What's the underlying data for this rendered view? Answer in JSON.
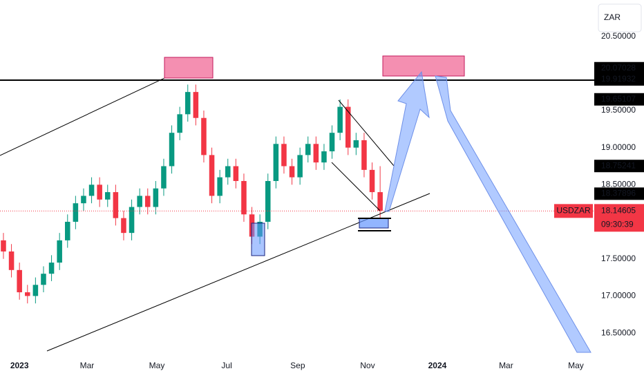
{
  "chart_data": {
    "type": "candlestick",
    "currency": "ZAR",
    "symbol": "USDZAR",
    "countdown": "09:30:39",
    "x": [
      -14,
      -7,
      0,
      7,
      14,
      21,
      28,
      35,
      42,
      49,
      56,
      63,
      70,
      77,
      84,
      91,
      98,
      105,
      112,
      119,
      126,
      133,
      140,
      147,
      154,
      161,
      168,
      175,
      182,
      189,
      196,
      203,
      210,
      217,
      224,
      231,
      238,
      245,
      252,
      259,
      266,
      273,
      280,
      287,
      294,
      301,
      308,
      315
    ],
    "open": [
      17.75,
      17.6,
      17.35,
      17.05,
      17.0,
      17.15,
      17.3,
      17.45,
      17.75,
      18.0,
      18.25,
      18.35,
      18.5,
      18.3,
      18.4,
      18.05,
      17.85,
      18.2,
      18.35,
      18.2,
      18.45,
      18.75,
      19.2,
      19.45,
      19.75,
      19.4,
      18.9,
      18.35,
      18.6,
      18.75,
      18.55,
      18.1,
      17.8,
      18.0,
      18.55,
      19.05,
      18.75,
      18.6,
      18.9,
      19.05,
      18.8,
      18.95,
      19.2,
      19.55,
      19.0,
      19.1,
      18.7,
      18.4
    ],
    "close": [
      17.6,
      17.35,
      17.05,
      17.0,
      17.15,
      17.3,
      17.45,
      17.75,
      18.0,
      18.25,
      18.35,
      18.5,
      18.3,
      18.4,
      18.05,
      17.85,
      18.2,
      18.35,
      18.2,
      18.45,
      18.75,
      19.2,
      19.45,
      19.75,
      19.4,
      18.9,
      18.35,
      18.6,
      18.75,
      18.55,
      18.1,
      17.8,
      18.0,
      18.55,
      19.05,
      18.75,
      18.6,
      18.9,
      19.05,
      18.8,
      18.95,
      19.2,
      19.55,
      19.0,
      19.1,
      18.7,
      18.4,
      18.15
    ],
    "high": [
      17.85,
      17.7,
      17.45,
      17.15,
      17.25,
      17.4,
      17.55,
      17.85,
      18.1,
      18.35,
      18.45,
      18.6,
      18.6,
      18.5,
      18.5,
      18.15,
      18.3,
      18.45,
      18.45,
      18.55,
      18.85,
      19.3,
      19.55,
      19.85,
      19.85,
      19.5,
      19.0,
      18.7,
      18.85,
      18.85,
      18.65,
      18.2,
      18.1,
      18.65,
      19.15,
      19.15,
      18.85,
      19.0,
      19.15,
      19.15,
      19.05,
      19.3,
      19.65,
      19.65,
      19.2,
      19.2,
      18.8,
      18.75
    ],
    "low": [
      17.5,
      17.25,
      16.95,
      16.9,
      16.9,
      17.05,
      17.2,
      17.35,
      17.65,
      17.9,
      18.15,
      18.25,
      18.2,
      18.2,
      17.95,
      17.75,
      17.75,
      18.1,
      18.1,
      18.1,
      18.35,
      18.65,
      19.1,
      19.35,
      19.3,
      18.8,
      18.25,
      18.25,
      18.5,
      18.45,
      18.0,
      17.7,
      17.7,
      17.9,
      18.45,
      18.65,
      18.5,
      18.5,
      18.8,
      18.7,
      18.7,
      18.85,
      19.1,
      18.9,
      18.9,
      18.6,
      18.3,
      18.05
    ],
    "xlim": [
      -17,
      502
    ],
    "ylim": [
      16.24,
      20.99
    ],
    "xticks": [
      {
        "value": 0,
        "label": "2023"
      },
      {
        "value": 59,
        "label": "Mar"
      },
      {
        "value": 120,
        "label": "May"
      },
      {
        "value": 181,
        "label": "Jul"
      },
      {
        "value": 243,
        "label": "Sep"
      },
      {
        "value": 304,
        "label": "Nov"
      },
      {
        "value": 365,
        "label": "2024"
      },
      {
        "value": 425,
        "label": "Mar"
      },
      {
        "value": 486,
        "label": "May"
      }
    ],
    "yticks": [
      {
        "value": 20.5,
        "label": "20.50000"
      },
      {
        "value": 19.5,
        "label": "19.50000"
      },
      {
        "value": 19,
        "label": "19.00000"
      },
      {
        "value": 18.5,
        "label": "18.50000"
      },
      {
        "value": 17.5,
        "label": "17.50000"
      },
      {
        "value": 17,
        "label": "17.00000"
      },
      {
        "value": 16.5,
        "label": "16.50000"
      }
    ],
    "price_labels": [
      {
        "value": 20.07028,
        "label": "20.07028"
      },
      {
        "value": 19.91932,
        "label": "19.91932"
      },
      {
        "value": 19.65107,
        "label": "19.65107"
      },
      {
        "value": 18.75241,
        "label": "18.75241"
      },
      {
        "value": 18.37896,
        "label": "18.37896"
      }
    ],
    "last_price": {
      "value": 18.14605,
      "label": "18.14605"
    },
    "up_color": "#089981",
    "down_color": "#f23645"
  }
}
